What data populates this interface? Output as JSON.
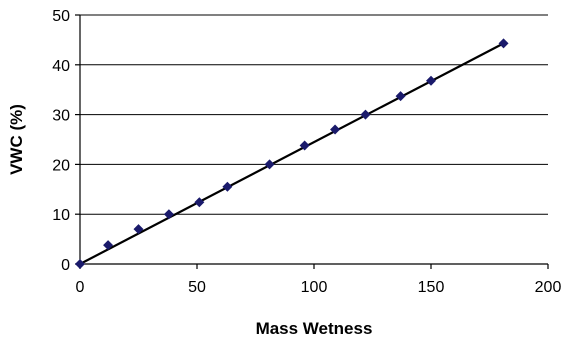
{
  "chart_data": {
    "type": "scatter",
    "title": "",
    "xlabel": "Mass Wetness",
    "ylabel": "VWC (%)",
    "xlim": [
      0,
      200
    ],
    "ylim": [
      0,
      50
    ],
    "xticks": [
      0,
      50,
      100,
      150,
      200
    ],
    "yticks": [
      0,
      10,
      20,
      30,
      40,
      50
    ],
    "grid": "horizontal",
    "legend": "none",
    "marker": "diamond",
    "marker_color": "#1a1a6b",
    "line_color": "#000000",
    "series": [
      {
        "points": [
          {
            "x": 0,
            "y": 0
          },
          {
            "x": 12,
            "y": 3.8
          },
          {
            "x": 25,
            "y": 7
          },
          {
            "x": 38,
            "y": 10
          },
          {
            "x": 51,
            "y": 12.4
          },
          {
            "x": 63,
            "y": 15.5
          },
          {
            "x": 81,
            "y": 20
          },
          {
            "x": 96,
            "y": 23.8
          },
          {
            "x": 109,
            "y": 27
          },
          {
            "x": 122,
            "y": 30
          },
          {
            "x": 137,
            "y": 33.7
          },
          {
            "x": 150,
            "y": 36.8
          },
          {
            "x": 181,
            "y": 44.3
          }
        ]
      }
    ],
    "trendline": {
      "x": [
        0,
        181
      ],
      "y": [
        0,
        44.3
      ]
    }
  }
}
